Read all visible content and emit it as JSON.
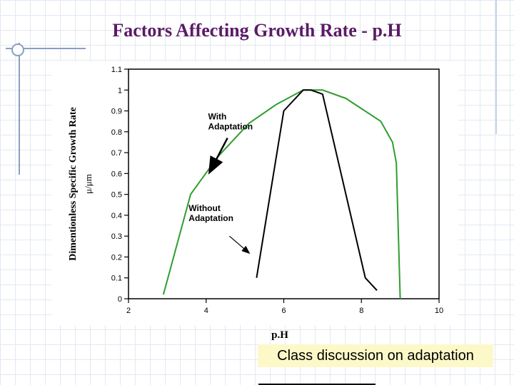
{
  "slide": {
    "title": "Factors Affecting Growth Rate - p.H",
    "caption": "Class discussion on adaptation"
  },
  "colors": {
    "title": "#5b1a66",
    "with_adaptation": "#2e9e2e",
    "without_adaptation": "#000000",
    "caption_bg": "#fdf8c8"
  },
  "chart_data": {
    "type": "line",
    "xlabel": "p.H",
    "ylabel": "Dimentionless Specific Growth Rate",
    "ylabel_symbol": "μ/μm",
    "xlim": [
      2,
      10
    ],
    "ylim": [
      0,
      1.1
    ],
    "x_ticks": [
      "2",
      "4",
      "6",
      "8",
      "10"
    ],
    "y_ticks": [
      "0",
      "0.1",
      "0.2",
      "0.3",
      "0.4",
      "0.5",
      "0.6",
      "0.7",
      "0.8",
      "0.9",
      "1",
      "1.1"
    ],
    "grid": false,
    "series": [
      {
        "name": "With Adaptation",
        "color": "#2e9e2e",
        "x": [
          2.9,
          3.6,
          4.3,
          5.1,
          5.8,
          6.5,
          7.0,
          7.6,
          8.5,
          8.8,
          8.9,
          9.0
        ],
        "y": [
          0.02,
          0.5,
          0.68,
          0.84,
          0.93,
          1.0,
          1.0,
          0.96,
          0.85,
          0.75,
          0.65,
          0.0
        ]
      },
      {
        "name": "Without Adaptation",
        "color": "#000000",
        "x": [
          5.3,
          6.0,
          6.5,
          6.7,
          7.0,
          8.1,
          8.4
        ],
        "y": [
          0.1,
          0.9,
          1.0,
          1.0,
          0.98,
          0.1,
          0.04
        ]
      }
    ],
    "annotations": [
      {
        "label_lines": [
          "With",
          "Adaptation"
        ],
        "text_x": 4.05,
        "text_y": 0.86,
        "arrow_from": [
          4.55,
          0.77
        ],
        "arrow_to": [
          4.1,
          0.61
        ]
      },
      {
        "label_lines": [
          "Without",
          "Adaptation"
        ],
        "text_x": 3.55,
        "text_y": 0.42,
        "arrow_from": [
          4.6,
          0.3
        ],
        "arrow_to": [
          5.1,
          0.22
        ]
      }
    ]
  }
}
